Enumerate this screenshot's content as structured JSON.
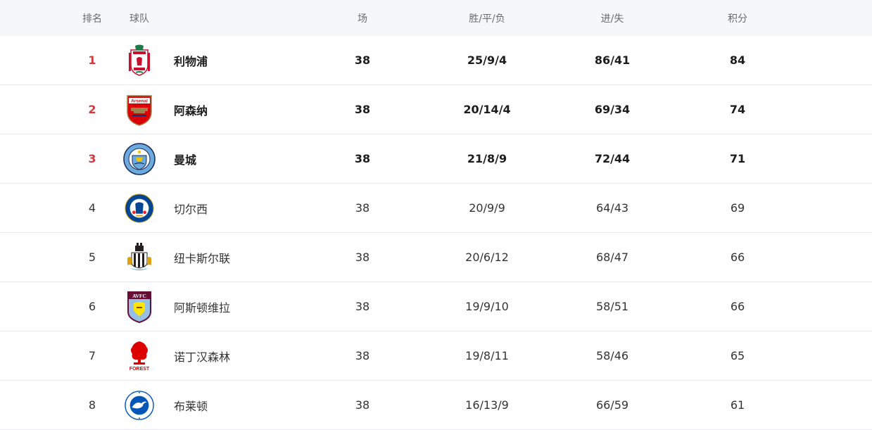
{
  "header": {
    "rank": "排名",
    "team": "球队",
    "played": "场",
    "wdl": "胜/平/负",
    "goals": "进/失",
    "points": "积分"
  },
  "rows": [
    {
      "rank": "1",
      "team": "利物浦",
      "played": "38",
      "wdl": "25/9/4",
      "goals": "86/41",
      "points": "84",
      "logo": "liverpool-crest-icon",
      "crest_text": "LIVERPOOL FC",
      "color": "#c8102e"
    },
    {
      "rank": "2",
      "team": "阿森纳",
      "played": "38",
      "wdl": "20/14/4",
      "goals": "69/34",
      "points": "74",
      "logo": "arsenal-crest-icon",
      "crest_text": "Arsenal",
      "color": "#db0007"
    },
    {
      "rank": "3",
      "team": "曼城",
      "played": "38",
      "wdl": "21/8/9",
      "goals": "72/44",
      "points": "71",
      "logo": "manchester-city-crest-icon",
      "crest_text": "MANCHESTER CITY",
      "color": "#6cabdd"
    },
    {
      "rank": "4",
      "team": "切尔西",
      "played": "38",
      "wdl": "20/9/9",
      "goals": "64/43",
      "points": "69",
      "logo": "chelsea-crest-icon",
      "crest_text": "CHELSEA FOOTBALL CLUB",
      "color": "#034694"
    },
    {
      "rank": "5",
      "team": "纽卡斯尔联",
      "played": "38",
      "wdl": "20/6/12",
      "goals": "68/47",
      "points": "66",
      "logo": "newcastle-crest-icon",
      "crest_text": "",
      "color": "#241f20"
    },
    {
      "rank": "6",
      "team": "阿斯顿维拉",
      "played": "38",
      "wdl": "19/9/10",
      "goals": "58/51",
      "points": "66",
      "logo": "aston-villa-crest-icon",
      "crest_text": "AVFC",
      "color": "#95bfe5"
    },
    {
      "rank": "7",
      "team": "诺丁汉森林",
      "played": "38",
      "wdl": "19/8/11",
      "goals": "58/46",
      "points": "65",
      "logo": "nottingham-forest-crest-icon",
      "crest_text": "FOREST",
      "color": "#dd0000"
    },
    {
      "rank": "8",
      "team": "布莱顿",
      "played": "38",
      "wdl": "16/13/9",
      "goals": "66/59",
      "points": "61",
      "logo": "brighton-crest-icon",
      "crest_text": "BRIGHTON & HOVE ALBION",
      "color": "#0057b8"
    }
  ]
}
